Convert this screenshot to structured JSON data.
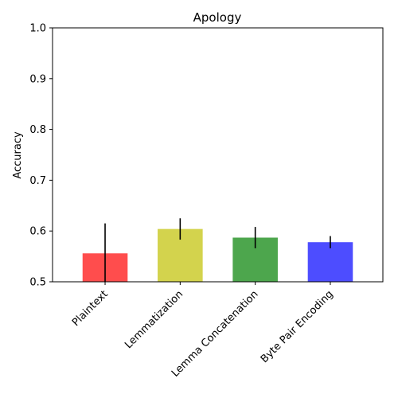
{
  "chart_data": {
    "type": "bar",
    "title": "Apology",
    "xlabel": "",
    "ylabel": "Accuracy",
    "ylim": [
      0.5,
      1.0
    ],
    "yticks": [
      "0.5",
      "0.6",
      "0.7",
      "0.8",
      "0.9",
      "1.0"
    ],
    "grid": false,
    "categories": [
      "Plaintext",
      "Lemmatization",
      "Lemma Concatenation",
      "Byte Pair Encoding"
    ],
    "values": [
      0.556,
      0.604,
      0.587,
      0.578
    ],
    "errors": [
      0.059,
      0.021,
      0.021,
      0.012
    ],
    "colors": [
      "#ff4d4d",
      "#d3d34d",
      "#4da64d",
      "#4d4dff"
    ]
  }
}
